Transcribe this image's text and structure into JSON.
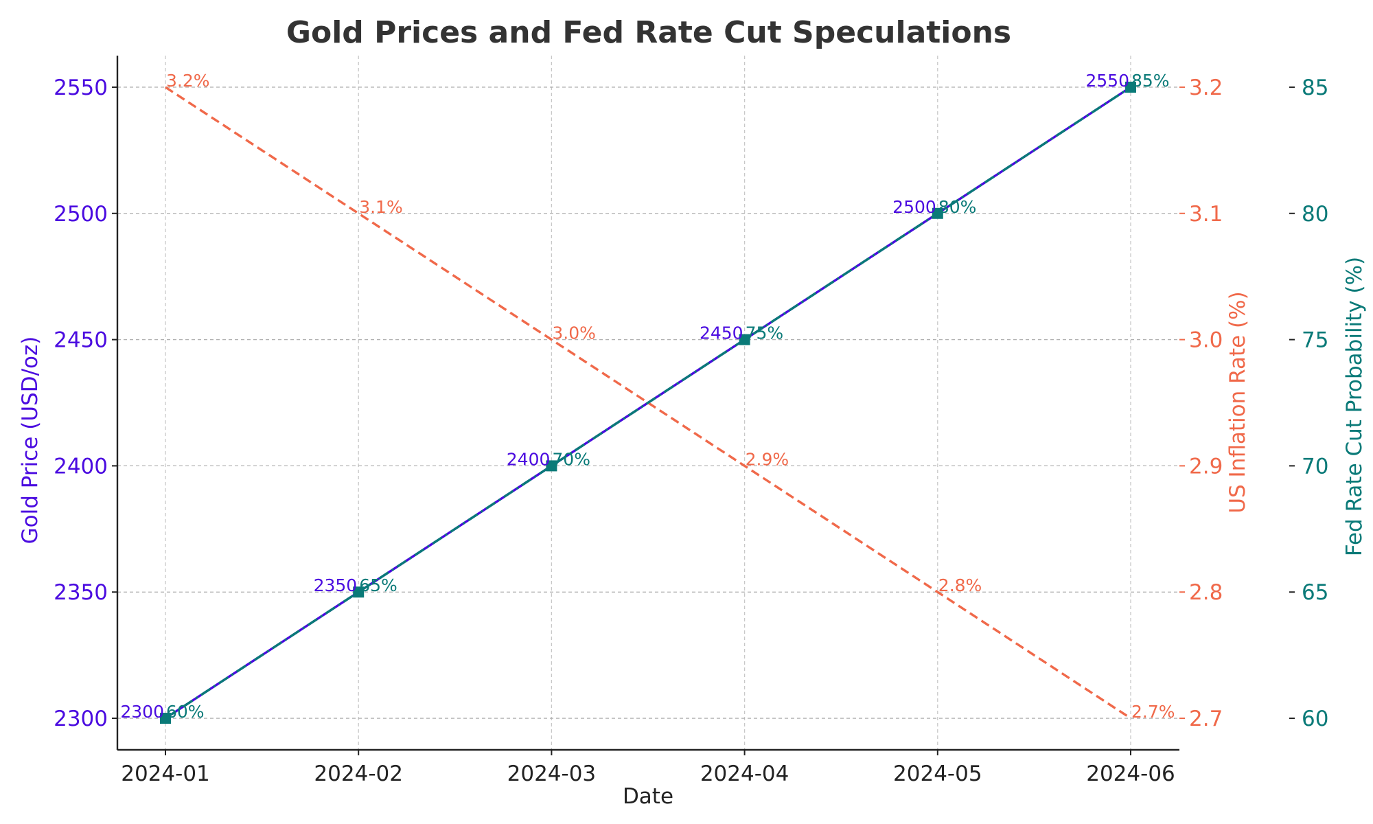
{
  "chart_data": {
    "type": "line",
    "title": "Gold Prices and Fed Rate Cut Speculations",
    "xlabel": "Date",
    "categories": [
      "2024-01",
      "2024-02",
      "2024-03",
      "2024-04",
      "2024-05",
      "2024-06"
    ],
    "grid": true,
    "axes": {
      "left": {
        "label": "Gold Price (USD/oz)",
        "color": "#4B0CE0",
        "ticks": [
          2300,
          2350,
          2400,
          2450,
          2500,
          2550
        ],
        "range": [
          2287.5,
          2562.5
        ]
      },
      "right1": {
        "label": "US Inflation Rate (%)",
        "color": "#F0694A",
        "ticks": [
          "2.7",
          "2.8",
          "2.9",
          "3.0",
          "3.1",
          "3.2"
        ],
        "range": [
          2.675,
          3.225
        ]
      },
      "right2": {
        "label": "Fed Rate Cut Probability (%)",
        "color": "#0A7A78",
        "ticks": [
          60,
          65,
          70,
          75,
          80,
          85
        ],
        "range": [
          58.75,
          86.25
        ]
      }
    },
    "series": [
      {
        "axis": "left",
        "color": "#4B0CE0",
        "style": "solid",
        "values": [
          2300,
          2350,
          2400,
          2450,
          2500,
          2550
        ],
        "labels": [
          "2300",
          "2350",
          "2400",
          "2450",
          "2500",
          "2550"
        ]
      },
      {
        "axis": "right1",
        "color": "#F0694A",
        "style": "dashed",
        "values": [
          3.2,
          3.1,
          3.0,
          2.9,
          2.8,
          2.7
        ],
        "labels": [
          "3.2%",
          "3.1%",
          "3.0%",
          "2.9%",
          "2.8%",
          "2.7%"
        ]
      },
      {
        "axis": "right2",
        "color": "#0A7A78",
        "style": "dashdot",
        "marker": "square",
        "values": [
          60,
          65,
          70,
          75,
          80,
          85
        ],
        "labels": [
          "60%",
          "65%",
          "70%",
          "75%",
          "80%",
          "85%"
        ]
      }
    ]
  }
}
